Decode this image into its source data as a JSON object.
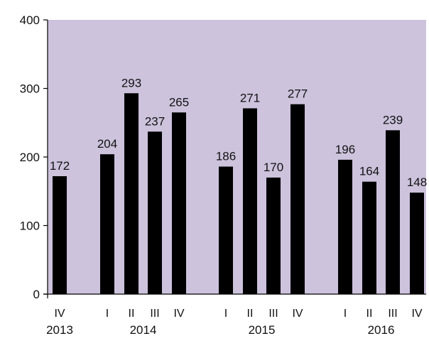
{
  "chart_data": {
    "type": "bar",
    "title": "",
    "xlabel": "",
    "ylabel": "",
    "ylim": [
      0,
      400
    ],
    "yticks": [
      0,
      100,
      200,
      300,
      400
    ],
    "grid": false,
    "legend": "none",
    "colors": {
      "plot_background": "#cdc3dd",
      "bar": "#000000",
      "axis": "#000000",
      "text": "#111111"
    },
    "groups": [
      {
        "year": "2013",
        "categories": [
          "IV"
        ],
        "values": [
          172
        ]
      },
      {
        "year": "2014",
        "categories": [
          "I",
          "II",
          "III",
          "IV"
        ],
        "values": [
          204,
          293,
          237,
          265
        ]
      },
      {
        "year": "2015",
        "categories": [
          "I",
          "II",
          "III",
          "IV"
        ],
        "values": [
          186,
          271,
          170,
          277
        ]
      },
      {
        "year": "2016",
        "categories": [
          "I",
          "II",
          "III",
          "IV"
        ],
        "values": [
          196,
          164,
          239,
          148
        ]
      }
    ]
  }
}
